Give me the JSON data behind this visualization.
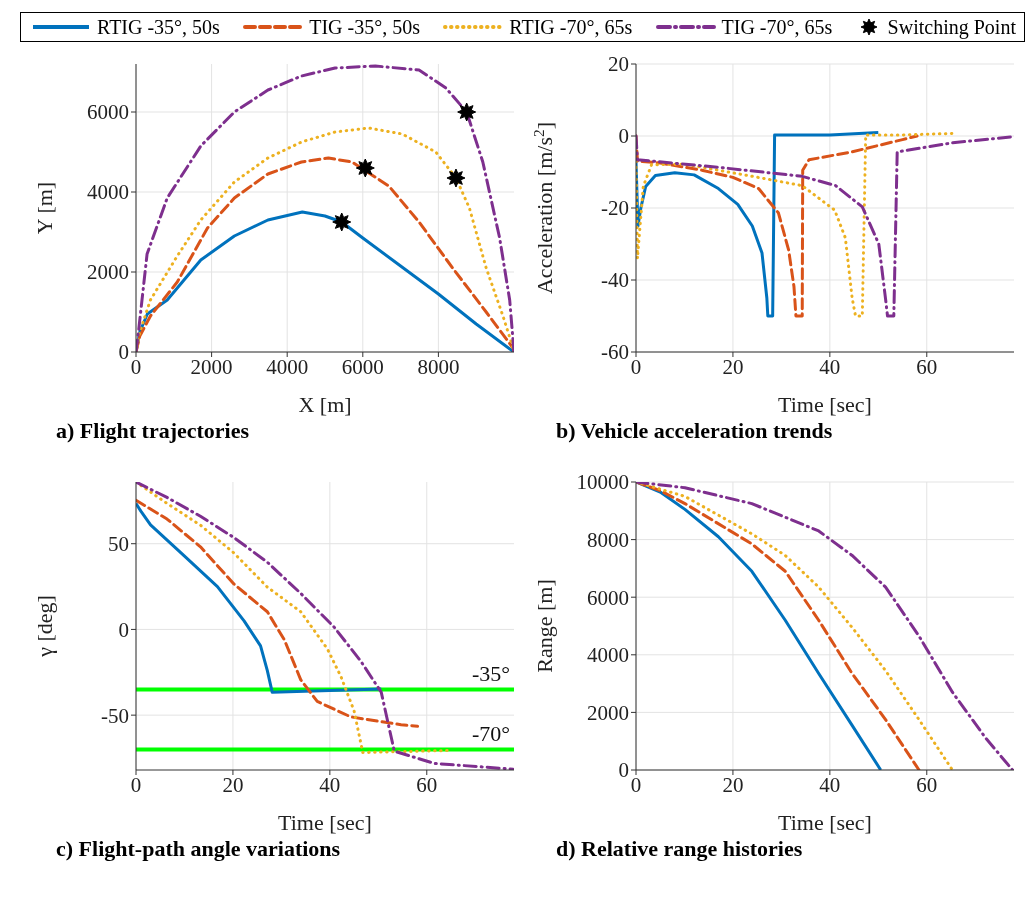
{
  "chart_data": [
    {
      "type": "line",
      "title": "a) Flight trajectories",
      "xlabel": "X [m]",
      "ylabel": "Y [m]",
      "xlim": [
        0,
        10000
      ],
      "xticks": [
        0,
        2000,
        4000,
        6000,
        8000
      ],
      "ylim": [
        0,
        7200
      ],
      "yticks": [
        0,
        2000,
        4000,
        6000
      ],
      "grid": true,
      "legend": "top",
      "series": [
        {
          "name": "RTIG -35°, 50s",
          "color": "#0072bd",
          "line_style": "solid",
          "x": [
            0,
            100,
            300,
            826,
            1714,
            2602,
            3490,
            4400,
            5000,
            5443,
            6000,
            7000,
            8000,
            9000,
            10000
          ],
          "values": [
            0,
            500,
            950,
            1300,
            2300,
            2900,
            3300,
            3500,
            3400,
            3250,
            2850,
            2150,
            1450,
            700,
            0
          ]
        },
        {
          "name": "TIG -35°, 50s",
          "color": "#d95319",
          "line_style": "dashed",
          "x": [
            0,
            100,
            382,
            1092,
            1891,
            2602,
            3490,
            4378,
            5090,
            5712,
            6689,
            7488,
            8376,
            9264,
            9975,
            10000
          ],
          "values": [
            0,
            400,
            900,
            1750,
            3100,
            3850,
            4450,
            4750,
            4850,
            4750,
            4150,
            3250,
            2100,
            1000,
            100,
            0
          ]
        },
        {
          "name": "RTIG -70°, 65s",
          "color": "#edb120",
          "line_style": "dotted",
          "x": [
            0,
            100,
            382,
            1092,
            1714,
            2602,
            3490,
            4378,
            5266,
            6155,
            7043,
            7931,
            8465,
            8820,
            9264,
            9708,
            9975,
            10000
          ],
          "values": [
            0,
            500,
            1300,
            2400,
            3300,
            4250,
            4850,
            5250,
            5500,
            5600,
            5450,
            5000,
            4350,
            3600,
            2100,
            900,
            100,
            0
          ]
        },
        {
          "name": "TIG -70°, 65s",
          "color": "#7e2f8e",
          "line_style": "dashdot",
          "x": [
            0,
            71,
            293,
            826,
            1714,
            2602,
            3490,
            4378,
            5266,
            6333,
            7488,
            8198,
            8748,
            9175,
            9620,
            9886,
            10000
          ],
          "values": [
            0,
            550,
            2450,
            3850,
            5150,
            6000,
            6550,
            6900,
            7100,
            7150,
            7050,
            6600,
            6000,
            4750,
            2850,
            1300,
            0
          ]
        },
        {
          "name": "Switching Point",
          "type": "scatter",
          "marker": "star",
          "color": "#000000",
          "x": [
            5443,
            6066,
            8465,
            8748
          ],
          "values": [
            3250,
            4600,
            4350,
            6000
          ]
        }
      ]
    },
    {
      "type": "line",
      "title": "b) Vehicle acceleration trends",
      "xlabel": "Time [sec]",
      "ylabel": "Acceleration [m/s$^{2}$]",
      "xlim": [
        0,
        78
      ],
      "xticks": [
        0,
        20,
        40,
        60
      ],
      "ylim": [
        -60,
        20
      ],
      "yticks": [
        -60,
        -40,
        -20,
        0,
        20
      ],
      "grid": true,
      "series": [
        {
          "color": "#0072bd",
          "line_style": "solid",
          "x": [
            0,
            0.4,
            1,
            2,
            4,
            8,
            12,
            17,
            21,
            24,
            26,
            27,
            27.2,
            28.2,
            28.6,
            40,
            50
          ],
          "values": [
            -7,
            -25,
            -20,
            -14,
            -11,
            -10.2,
            -10.8,
            -14.6,
            -19,
            -25,
            -32.5,
            -45,
            -50,
            -50,
            0.3,
            0.3,
            1
          ]
        },
        {
          "color": "#d95319",
          "line_style": "dashed",
          "x": [
            0,
            0.3,
            5,
            13.6,
            20,
            25.3,
            29.4,
            31.5,
            32.6,
            33,
            34.3,
            34.4,
            35.7,
            44.6,
            55,
            58
          ],
          "values": [
            0,
            -7,
            -7.5,
            -9.5,
            -11.5,
            -14.6,
            -21.4,
            -31.7,
            -41.9,
            -50,
            -50,
            -9.5,
            -6.6,
            -4.4,
            -1,
            0
          ]
        },
        {
          "color": "#edb120",
          "line_style": "dotted",
          "x": [
            0,
            0.3,
            1.5,
            3.2,
            10,
            24,
            34.3,
            41,
            43.2,
            44.6,
            45.3,
            46.7,
            47.4,
            55,
            65.3
          ],
          "values": [
            -7,
            -34,
            -14,
            -8,
            -7.8,
            -11.2,
            -13.8,
            -20.6,
            -28.3,
            -45,
            -50,
            -50,
            0.3,
            0.3,
            0.7
          ]
        },
        {
          "color": "#7e2f8e",
          "line_style": "dashdot",
          "x": [
            0,
            0.3,
            17,
            34.3,
            41.2,
            46.7,
            50.1,
            51.5,
            51.9,
            53.2,
            53.9,
            65.3,
            77.7
          ],
          "values": [
            0,
            -6.6,
            -8.7,
            -11.2,
            -13.8,
            -19.7,
            -30,
            -45.3,
            -50,
            -50,
            -4.4,
            -1.9,
            -0.2
          ]
        }
      ]
    },
    {
      "type": "line",
      "title": "c) Flight-path angle variations",
      "xlabel": "Time [sec]",
      "ylabel": "γ [deg]",
      "xlim": [
        0,
        78
      ],
      "xticks": [
        0,
        20,
        40,
        60
      ],
      "ylim": [
        -82,
        86
      ],
      "yticks": [
        -50,
        0,
        50
      ],
      "grid": true,
      "ref_lines": [
        {
          "axis": "y",
          "value": -35,
          "label": "-35°",
          "color": "#00ff00"
        },
        {
          "axis": "y",
          "value": -70,
          "label": "-70°",
          "color": "#00ff00"
        }
      ],
      "series": [
        {
          "color": "#0072bd",
          "line_style": "solid",
          "x": [
            0,
            1,
            3,
            9.9,
            16.8,
            22.3,
            25.7,
            27.1,
            28.1,
            40,
            50.6
          ],
          "values": [
            73.5,
            69,
            61,
            43,
            25,
            5,
            -9.6,
            -24,
            -36.6,
            -35.6,
            -34.8
          ]
        },
        {
          "color": "#d95319",
          "line_style": "dashed",
          "x": [
            0,
            6.4,
            13.3,
            20.2,
            27.1,
            30.6,
            34,
            37.4,
            44.3,
            54.7,
            58.1
          ],
          "values": [
            75.3,
            64.4,
            48.2,
            26.5,
            10.3,
            -6,
            -29.4,
            -42,
            -51,
            -55.6,
            -56.5
          ]
        },
        {
          "color": "#edb120",
          "line_style": "dotted",
          "x": [
            0,
            6.4,
            13.3,
            20.2,
            27.1,
            34,
            39.5,
            42.3,
            45,
            46.8,
            65
          ],
          "values": [
            86,
            73.5,
            60.8,
            44.6,
            24.7,
            10.3,
            -11.4,
            -27.6,
            -47.5,
            -71.8,
            -70.6
          ]
        },
        {
          "color": "#7e2f8e",
          "line_style": "dashdot",
          "x": [
            0,
            6.4,
            13.3,
            20.2,
            27.1,
            34,
            40.9,
            46.4,
            50.6,
            53.3,
            61.6,
            77.8
          ],
          "values": [
            86,
            77,
            66,
            53.6,
            39.2,
            21,
            1.3,
            -18.6,
            -36.6,
            -71,
            -78.2,
            -81.5
          ]
        }
      ]
    },
    {
      "type": "line",
      "title": "d) Relative range histories",
      "xlabel": "Time [sec]",
      "ylabel": "Range [m]",
      "xlim": [
        0,
        78
      ],
      "xticks": [
        0,
        20,
        40,
        60
      ],
      "ylim": [
        0,
        10000
      ],
      "yticks": [
        0,
        2000,
        4000,
        6000,
        8000,
        10000
      ],
      "grid": true,
      "series": [
        {
          "color": "#0072bd",
          "line_style": "solid",
          "x": [
            0,
            5,
            10.1,
            17,
            23.9,
            30.8,
            37.7,
            44.6,
            50.5
          ],
          "values": [
            10000,
            9650,
            9050,
            8100,
            6900,
            5200,
            3350,
            1550,
            0
          ]
        },
        {
          "color": "#d95319",
          "line_style": "dashed",
          "x": [
            0,
            5,
            10.1,
            23.9,
            30.8,
            37.7,
            44.6,
            51.5,
            58.4
          ],
          "values": [
            10000,
            9700,
            9250,
            7850,
            6900,
            5200,
            3350,
            1750,
            0
          ]
        },
        {
          "color": "#edb120",
          "line_style": "dotted",
          "x": [
            0,
            10.1,
            23.9,
            30.8,
            37.7,
            44.6,
            51.5,
            58.4,
            65.3
          ],
          "values": [
            10000,
            9500,
            8200,
            7450,
            6350,
            4950,
            3450,
            1750,
            0
          ]
        },
        {
          "color": "#7e2f8e",
          "line_style": "dashdot",
          "x": [
            0,
            10.1,
            23.9,
            37.7,
            44.6,
            51.5,
            58.4,
            65.3,
            72.2,
            77.7
          ],
          "values": [
            10000,
            9800,
            9250,
            8300,
            7450,
            6350,
            4650,
            2700,
            1100,
            0
          ]
        }
      ]
    }
  ]
}
